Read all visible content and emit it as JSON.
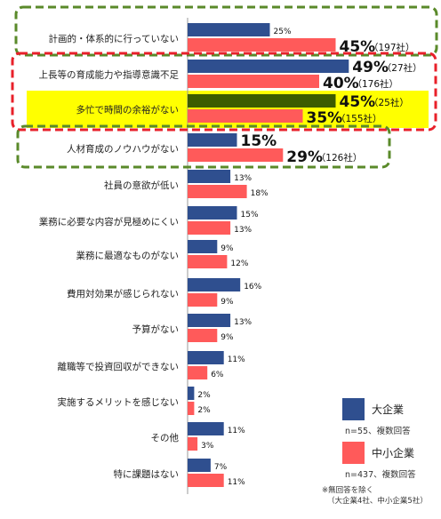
{
  "chart_data": {
    "type": "bar",
    "orientation": "horizontal",
    "categories": [
      "計画的・体系的に行っていない",
      "上長等の育成能力や指導意識不足",
      "多忙で時間の余裕がない",
      "人材育成のノウハウがない",
      "社員の意欲が低い",
      "業務に必要な内容が見極めにくい",
      "業務に最適なものがない",
      "費用対効果が感じられない",
      "予算がない",
      "離職等で投資回収ができない",
      "実施するメリットを感じない",
      "その他",
      "特に課題はない"
    ],
    "series": [
      {
        "name": "大企業",
        "color": "#2f4f8f",
        "highlight_color": "#3d5c00",
        "values": [
          25,
          49,
          45,
          15,
          13,
          15,
          9,
          16,
          13,
          11,
          2,
          11,
          7
        ],
        "labels": [
          "25%",
          "49%",
          "45%",
          "15%",
          "13%",
          "15%",
          "9%",
          "16%",
          "13%",
          "11%",
          "2%",
          "11%",
          "7%"
        ],
        "counts": [
          "",
          "（27社）",
          "（25社）",
          "",
          "",
          "",
          "",
          "",
          "",
          "",
          "",
          "",
          ""
        ]
      },
      {
        "name": "中小企業",
        "color": "#ff5a5a",
        "values": [
          45,
          40,
          35,
          29,
          18,
          13,
          12,
          9,
          9,
          6,
          2,
          3,
          11
        ],
        "labels": [
          "45%",
          "40%",
          "35%",
          "29%",
          "18%",
          "13%",
          "12%",
          "9%",
          "9%",
          "6%",
          "2%",
          "3%",
          "11%"
        ],
        "counts": [
          "（197社）",
          "（176社）",
          "（155社）",
          "（126社）",
          "",
          "",
          "",
          "",
          "",
          "",
          "",
          "",
          ""
        ]
      }
    ],
    "emphasized_labels": [
      0,
      1,
      2,
      3
    ],
    "highlighted_category": 2,
    "groups": [
      {
        "members": [
          0
        ],
        "border": "dashed",
        "color": "#5a8a2a"
      },
      {
        "members": [
          1,
          2
        ],
        "border": "dashed",
        "color": "#e8202a"
      },
      {
        "members": [
          3
        ],
        "border": "dashed",
        "color": "#5a8a2a"
      }
    ],
    "highlight_color": "#ffff00"
  },
  "legend": {
    "items": [
      {
        "name": "大企業",
        "color": "#2f4f8f",
        "note": "n=55、複数回答"
      },
      {
        "name": "中小企業",
        "color": "#ff5a5a",
        "note": "n=437、複数回答"
      }
    ]
  },
  "footnote": {
    "line1": "※無回答を除く",
    "line2": "（大企業4社、中小企業5社）"
  }
}
